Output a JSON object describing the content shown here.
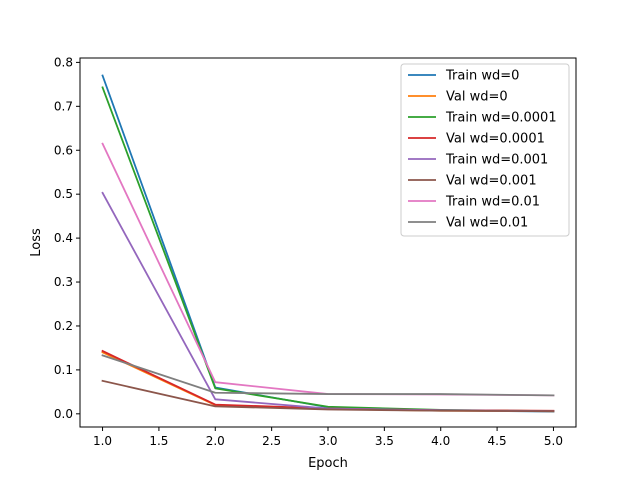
{
  "chart_data": {
    "type": "line",
    "title": "",
    "xlabel": "Epoch",
    "ylabel": "Loss",
    "xlim": [
      0.8,
      5.2
    ],
    "ylim": [
      -0.03,
      0.81
    ],
    "x_ticks": [
      1.0,
      1.5,
      2.0,
      2.5,
      3.0,
      3.5,
      4.0,
      4.5,
      5.0
    ],
    "y_ticks": [
      0.0,
      0.1,
      0.2,
      0.3,
      0.4,
      0.5,
      0.6,
      0.7,
      0.8
    ],
    "x_tick_labels": [
      "1.0",
      "1.5",
      "2.0",
      "2.5",
      "3.0",
      "3.5",
      "4.0",
      "4.5",
      "5.0"
    ],
    "y_tick_labels": [
      "0.0",
      "0.1",
      "0.2",
      "0.3",
      "0.4",
      "0.5",
      "0.6",
      "0.7",
      "0.8"
    ],
    "grid": false,
    "legend_position": "top-right",
    "x": [
      1,
      2,
      3,
      4,
      5
    ],
    "series": [
      {
        "name": "Train wd=0",
        "color": "#1f77b4",
        "values": [
          0.77,
          0.06,
          0.015,
          0.008,
          0.005
        ]
      },
      {
        "name": "Val wd=0",
        "color": "#ff7f0e",
        "values": [
          0.14,
          0.02,
          0.011,
          0.007,
          0.006
        ]
      },
      {
        "name": "Train wd=0.0001",
        "color": "#2ca02c",
        "values": [
          0.743,
          0.058,
          0.016,
          0.009,
          0.006
        ]
      },
      {
        "name": "Val wd=0.0001",
        "color": "#d62728",
        "values": [
          0.143,
          0.021,
          0.012,
          0.008,
          0.007
        ]
      },
      {
        "name": "Train wd=0.001",
        "color": "#9467bd",
        "values": [
          0.503,
          0.033,
          0.012,
          0.008,
          0.006
        ]
      },
      {
        "name": "Val wd=0.001",
        "color": "#8c564b",
        "values": [
          0.075,
          0.017,
          0.01,
          0.007,
          0.006
        ]
      },
      {
        "name": "Train wd=0.01",
        "color": "#e377c2",
        "values": [
          0.615,
          0.072,
          0.045,
          0.044,
          0.042
        ]
      },
      {
        "name": "Val wd=0.01",
        "color": "#7f7f7f",
        "values": [
          0.133,
          0.048,
          0.045,
          0.045,
          0.042
        ]
      }
    ]
  }
}
